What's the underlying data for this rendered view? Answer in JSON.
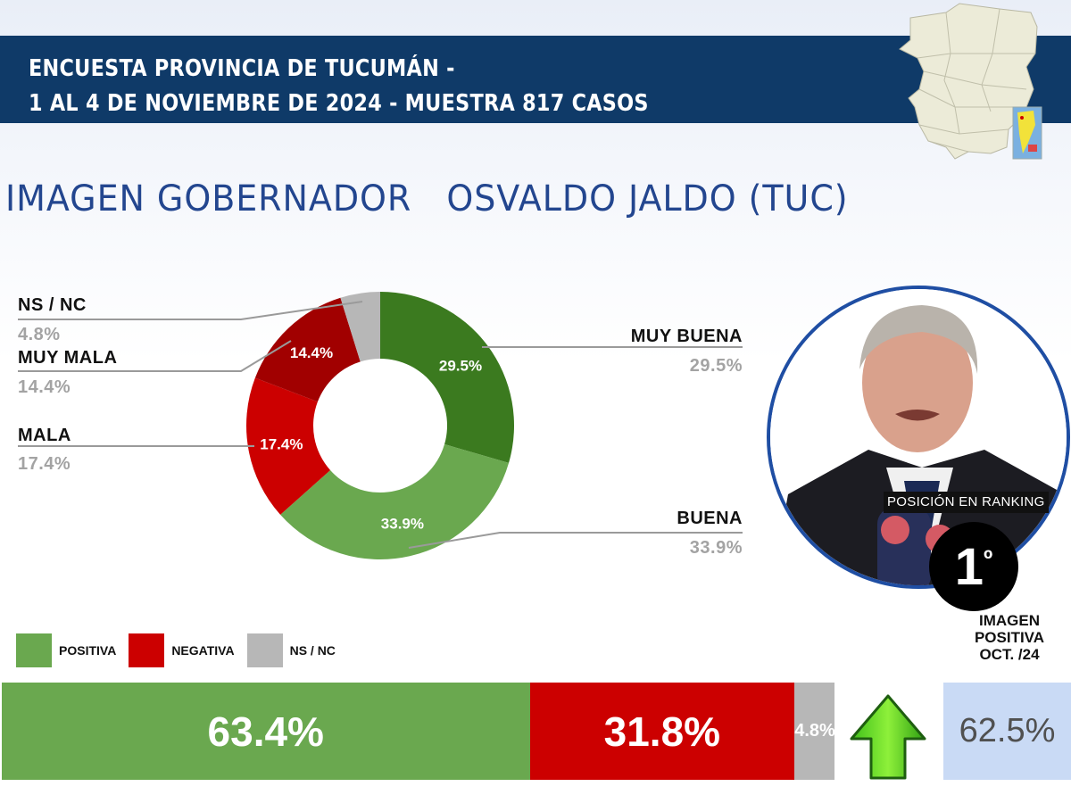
{
  "header": {
    "line1": "ENCUESTA PROVINCIA DE TUCUMÁN -",
    "line2": "1 AL 4 DE NOVIEMBRE DE 2024 - MUESTRA 817 CASOS",
    "band_color": "#0f3a68",
    "map_icon": "tucuman-province-map-icon"
  },
  "title": "IMAGEN GOBERNADOR   OSVALDO JALDO (TUC)",
  "donut": {
    "slices": [
      {
        "label": "MUY BUENA",
        "value": 29.5,
        "display": "29.5%",
        "color": "#3b7a1f"
      },
      {
        "label": "BUENA",
        "value": 33.9,
        "display": "33.9%",
        "color": "#6aa84f"
      },
      {
        "label": "MALA",
        "value": 17.4,
        "display": "17.4%",
        "color": "#cc0000"
      },
      {
        "label": "MUY MALA",
        "value": 14.4,
        "display": "14.4%",
        "color": "#a10000"
      },
      {
        "label": "NS / NC",
        "value": 4.8,
        "display": "4.8%",
        "color": "#b7b7b7"
      }
    ]
  },
  "profile": {
    "photo": "governor-portrait",
    "ranking_label": "POSICIÓN EN RANKING",
    "ranking_position": "1",
    "ranking_suffix": "º",
    "previous_label_line1": "IMAGEN",
    "previous_label_line2": "POSITIVA",
    "previous_label_line3": "OCT. /24",
    "previous_value": "62.5%",
    "trend_icon": "up-arrow-icon"
  },
  "legend": [
    {
      "label": "POSITIVA",
      "color": "#6aa84f"
    },
    {
      "label": "NEGATIVA",
      "color": "#cc0000"
    },
    {
      "label": "NS / NC",
      "color": "#b7b7b7"
    }
  ],
  "summary_bar": [
    {
      "label": "POSITIVA",
      "value": 63.4,
      "display": "63.4%",
      "color": "#6aa84f"
    },
    {
      "label": "NEGATIVA",
      "value": 31.8,
      "display": "31.8%",
      "color": "#cc0000"
    },
    {
      "label": "NS / NC",
      "value": 4.8,
      "display": "4.8%",
      "color": "#b7b7b7"
    }
  ],
  "chart_data": [
    {
      "type": "pie",
      "title": "IMAGEN GOBERNADOR OSVALDO JALDO (TUC)",
      "subtitle": "ENCUESTA PROVINCIA DE TUCUMÁN - 1 AL 4 DE NOVIEMBRE DE 2024 - MUESTRA 817 CASOS",
      "donut": true,
      "categories": [
        "MUY BUENA",
        "BUENA",
        "MALA",
        "MUY MALA",
        "NS / NC"
      ],
      "values": [
        29.5,
        33.9,
        17.4,
        14.4,
        4.8
      ],
      "colors": [
        "#3b7a1f",
        "#6aa84f",
        "#cc0000",
        "#a10000",
        "#b7b7b7"
      ],
      "unit": "%",
      "data_labels": true
    },
    {
      "type": "bar",
      "orientation": "horizontal",
      "stacked": true,
      "title": "Imagen positiva / negativa",
      "categories": [
        "POSITIVA",
        "NEGATIVA",
        "NS / NC"
      ],
      "values": [
        63.4,
        31.8,
        4.8
      ],
      "colors": [
        "#6aa84f",
        "#cc0000",
        "#b7b7b7"
      ],
      "unit": "%",
      "legend_position": "top-left",
      "comparison": {
        "label": "IMAGEN POSITIVA OCT. /24",
        "value": 62.5,
        "trend": "up"
      }
    }
  ]
}
